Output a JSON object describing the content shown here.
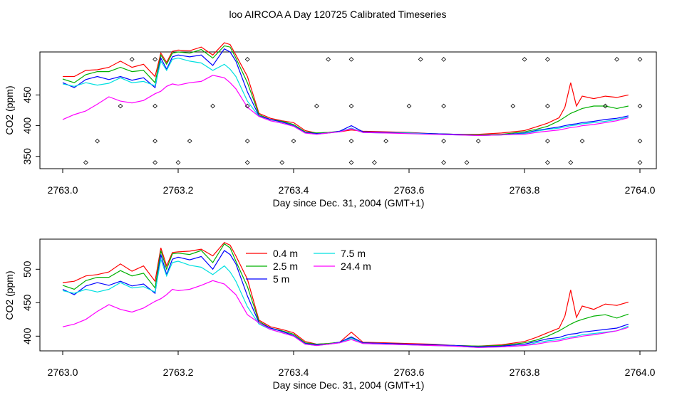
{
  "title": "loo AIRCOA A  Day 120725  Calibrated Timeseries",
  "chart_data": [
    {
      "type": "line",
      "xlabel": "Day since Dec. 31, 2004 (GMT+1)",
      "ylabel": "CO2 (ppm)",
      "xlim": [
        2763.0,
        2764.0
      ],
      "ylim": [
        330,
        520
      ],
      "xticks": [
        "2763.0",
        "2763.2",
        "2763.4",
        "2763.6",
        "2763.8",
        "2764.0"
      ],
      "yticks": [
        "350",
        "400",
        "450"
      ],
      "x": [
        2763.0,
        2763.02,
        2763.04,
        2763.06,
        2763.08,
        2763.1,
        2763.12,
        2763.14,
        2763.16,
        2763.17,
        2763.18,
        2763.19,
        2763.2,
        2763.22,
        2763.24,
        2763.26,
        2763.28,
        2763.29,
        2763.3,
        2763.32,
        2763.34,
        2763.36,
        2763.38,
        2763.4,
        2763.42,
        2763.44,
        2763.46,
        2763.48,
        2763.5,
        2763.52,
        2763.56,
        2763.6,
        2763.64,
        2763.68,
        2763.72,
        2763.76,
        2763.8,
        2763.82,
        2763.84,
        2763.86,
        2763.87,
        2763.88,
        2763.89,
        2763.9,
        2763.92,
        2763.94,
        2763.96,
        2763.98
      ],
      "series": [
        {
          "name": "0.4 m",
          "color": "#ff0000",
          "values": [
            480,
            480,
            490,
            491,
            495,
            505,
            495,
            500,
            480,
            518,
            503,
            521,
            523,
            522,
            528,
            515,
            535,
            532,
            515,
            480,
            420,
            412,
            408,
            405,
            392,
            388,
            389,
            390,
            393,
            391,
            390,
            389,
            387,
            386,
            386,
            388,
            392,
            398,
            404,
            413,
            430,
            470,
            432,
            448,
            444,
            448,
            446,
            450
          ]
        },
        {
          "name": "2.5 m",
          "color": "#00b000",
          "values": [
            476,
            470,
            483,
            488,
            488,
            495,
            488,
            490,
            470,
            515,
            500,
            518,
            520,
            518,
            524,
            510,
            530,
            528,
            510,
            470,
            418,
            410,
            407,
            402,
            390,
            388,
            389,
            391,
            395,
            390,
            389,
            388,
            387,
            386,
            385,
            386,
            390,
            394,
            399,
            408,
            414,
            420,
            424,
            428,
            432,
            432,
            428,
            432
          ]
        },
        {
          "name": "5 m",
          "color": "#0000ff",
          "values": [
            470,
            462,
            475,
            480,
            475,
            480,
            474,
            478,
            462,
            510,
            492,
            512,
            515,
            512,
            515,
            498,
            525,
            520,
            505,
            455,
            416,
            410,
            406,
            400,
            389,
            387,
            388,
            391,
            400,
            390,
            389,
            388,
            387,
            386,
            384,
            385,
            388,
            392,
            395,
            398,
            400,
            402,
            403,
            405,
            407,
            410,
            412,
            416
          ]
        },
        {
          "name": "7.5 m",
          "color": "#00e0e0",
          "values": [
            468,
            464,
            470,
            466,
            469,
            478,
            470,
            472,
            465,
            505,
            490,
            508,
            510,
            505,
            502,
            490,
            500,
            492,
            480,
            440,
            415,
            408,
            404,
            399,
            388,
            386,
            388,
            390,
            396,
            389,
            388,
            388,
            386,
            385,
            384,
            385,
            387,
            391,
            394,
            396,
            398,
            400,
            401,
            403,
            405,
            407,
            410,
            414
          ]
        },
        {
          "name": "24.4 m",
          "color": "#ff00ff",
          "values": [
            410,
            418,
            424,
            435,
            447,
            440,
            437,
            441,
            452,
            456,
            464,
            468,
            466,
            470,
            472,
            482,
            478,
            470,
            460,
            430,
            415,
            408,
            404,
            399,
            388,
            386,
            388,
            390,
            395,
            389,
            388,
            387,
            386,
            385,
            384,
            385,
            386,
            389,
            391,
            393,
            395,
            397,
            398,
            400,
            402,
            405,
            408,
            413
          ]
        }
      ],
      "markers": [
        {
          "x": 2763.12,
          "y": 508
        },
        {
          "x": 2763.16,
          "y": 508
        },
        {
          "x": 2763.32,
          "y": 508
        },
        {
          "x": 2763.46,
          "y": 508
        },
        {
          "x": 2763.5,
          "y": 508
        },
        {
          "x": 2763.62,
          "y": 508
        },
        {
          "x": 2763.66,
          "y": 508
        },
        {
          "x": 2763.8,
          "y": 508
        },
        {
          "x": 2763.84,
          "y": 508
        },
        {
          "x": 2763.96,
          "y": 508
        },
        {
          "x": 2764.0,
          "y": 508
        },
        {
          "x": 2763.1,
          "y": 432
        },
        {
          "x": 2763.16,
          "y": 432
        },
        {
          "x": 2763.26,
          "y": 432
        },
        {
          "x": 2763.32,
          "y": 432
        },
        {
          "x": 2763.44,
          "y": 432
        },
        {
          "x": 2763.5,
          "y": 432
        },
        {
          "x": 2763.6,
          "y": 432
        },
        {
          "x": 2763.66,
          "y": 432
        },
        {
          "x": 2763.78,
          "y": 432
        },
        {
          "x": 2763.84,
          "y": 432
        },
        {
          "x": 2763.94,
          "y": 432
        },
        {
          "x": 2764.0,
          "y": 432
        },
        {
          "x": 2763.06,
          "y": 375
        },
        {
          "x": 2763.16,
          "y": 375
        },
        {
          "x": 2763.22,
          "y": 375
        },
        {
          "x": 2763.32,
          "y": 375
        },
        {
          "x": 2763.4,
          "y": 375
        },
        {
          "x": 2763.5,
          "y": 375
        },
        {
          "x": 2763.56,
          "y": 375
        },
        {
          "x": 2763.66,
          "y": 375
        },
        {
          "x": 2763.72,
          "y": 375
        },
        {
          "x": 2763.84,
          "y": 375
        },
        {
          "x": 2763.9,
          "y": 375
        },
        {
          "x": 2764.0,
          "y": 375
        },
        {
          "x": 2763.04,
          "y": 340
        },
        {
          "x": 2763.16,
          "y": 340
        },
        {
          "x": 2763.2,
          "y": 340
        },
        {
          "x": 2763.32,
          "y": 340
        },
        {
          "x": 2763.38,
          "y": 340
        },
        {
          "x": 2763.5,
          "y": 340
        },
        {
          "x": 2763.54,
          "y": 340
        },
        {
          "x": 2763.66,
          "y": 340
        },
        {
          "x": 2763.7,
          "y": 340
        },
        {
          "x": 2763.84,
          "y": 340
        },
        {
          "x": 2763.88,
          "y": 340
        },
        {
          "x": 2764.0,
          "y": 340
        }
      ]
    },
    {
      "type": "line",
      "xlabel": "Day since Dec. 31, 2004 (GMT+1)",
      "ylabel": "CO2 (ppm)",
      "xlim": [
        2763.0,
        2764.0
      ],
      "ylim": [
        378,
        545
      ],
      "xticks": [
        "2763.0",
        "2763.2",
        "2763.4",
        "2763.6",
        "2763.8",
        "2764.0"
      ],
      "yticks": [
        "400",
        "450",
        "500"
      ],
      "legend": "top-center",
      "x": [
        2763.0,
        2763.02,
        2763.04,
        2763.06,
        2763.08,
        2763.1,
        2763.12,
        2763.14,
        2763.16,
        2763.17,
        2763.18,
        2763.19,
        2763.2,
        2763.22,
        2763.24,
        2763.26,
        2763.28,
        2763.29,
        2763.3,
        2763.32,
        2763.34,
        2763.36,
        2763.38,
        2763.4,
        2763.42,
        2763.44,
        2763.46,
        2763.48,
        2763.5,
        2763.52,
        2763.56,
        2763.6,
        2763.64,
        2763.68,
        2763.72,
        2763.76,
        2763.8,
        2763.82,
        2763.84,
        2763.86,
        2763.87,
        2763.88,
        2763.89,
        2763.9,
        2763.92,
        2763.94,
        2763.96,
        2763.98
      ],
      "series": [
        {
          "name": "0.4 m",
          "color": "#ff0000",
          "values": [
            480,
            482,
            490,
            492,
            496,
            508,
            497,
            505,
            482,
            532,
            505,
            525,
            526,
            527,
            530,
            520,
            540,
            536,
            520,
            485,
            424,
            414,
            410,
            405,
            392,
            388,
            389,
            391,
            406,
            391,
            390,
            389,
            388,
            386,
            385,
            387,
            392,
            398,
            405,
            412,
            430,
            469,
            428,
            445,
            440,
            448,
            446,
            451
          ]
        },
        {
          "name": "2.5 m",
          "color": "#00b000",
          "values": [
            476,
            470,
            483,
            488,
            488,
            498,
            490,
            494,
            472,
            528,
            500,
            523,
            524,
            522,
            528,
            510,
            538,
            532,
            512,
            474,
            422,
            412,
            408,
            403,
            390,
            388,
            389,
            391,
            398,
            390,
            389,
            388,
            387,
            386,
            385,
            386,
            390,
            394,
            400,
            408,
            413,
            418,
            422,
            425,
            430,
            432,
            427,
            433
          ]
        },
        {
          "name": "5 m",
          "color": "#0000ff",
          "values": [
            470,
            462,
            475,
            480,
            476,
            482,
            475,
            478,
            464,
            522,
            492,
            515,
            518,
            514,
            519,
            500,
            528,
            522,
            508,
            460,
            420,
            412,
            407,
            401,
            389,
            387,
            388,
            391,
            399,
            390,
            389,
            388,
            387,
            386,
            384,
            385,
            388,
            392,
            396,
            398,
            401,
            403,
            404,
            406,
            408,
            410,
            412,
            418
          ]
        },
        {
          "name": "7.5 m",
          "color": "#00e0e0",
          "values": [
            468,
            464,
            470,
            466,
            470,
            480,
            472,
            474,
            466,
            515,
            490,
            510,
            512,
            506,
            503,
            492,
            505,
            496,
            482,
            444,
            418,
            410,
            405,
            400,
            388,
            386,
            388,
            390,
            397,
            389,
            388,
            387,
            386,
            385,
            383,
            384,
            386,
            390,
            393,
            395,
            397,
            399,
            400,
            402,
            404,
            406,
            408,
            415
          ]
        },
        {
          "name": "24.4 m",
          "color": "#ff00ff",
          "values": [
            414,
            418,
            425,
            437,
            447,
            440,
            436,
            442,
            452,
            456,
            462,
            470,
            468,
            470,
            476,
            483,
            478,
            470,
            462,
            432,
            420,
            410,
            405,
            400,
            388,
            386,
            388,
            390,
            395,
            389,
            388,
            387,
            386,
            385,
            383,
            384,
            386,
            388,
            391,
            393,
            395,
            397,
            398,
            400,
            402,
            405,
            408,
            413
          ]
        }
      ]
    }
  ]
}
